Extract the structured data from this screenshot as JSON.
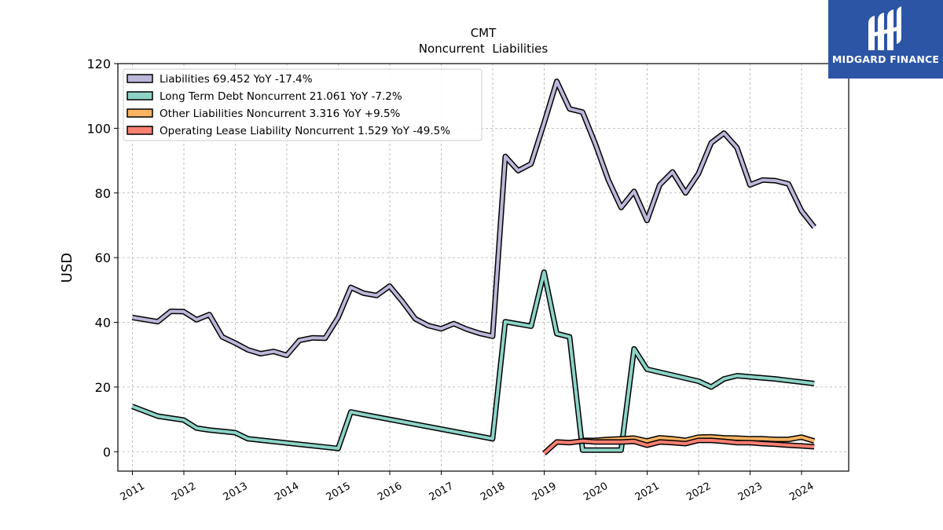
{
  "chart_data": {
    "type": "line",
    "title": "CMT",
    "subtitle": "Noncurrent  Liabilities",
    "ylabel": "USD",
    "ylim": [
      -6,
      120
    ],
    "yticks": [
      0,
      20,
      40,
      60,
      80,
      100,
      120
    ],
    "xlim": [
      "2010-09-20",
      "2024-12-01"
    ],
    "xticks": [
      "2011",
      "2012",
      "2013",
      "2014",
      "2015",
      "2016",
      "2017",
      "2018",
      "2019",
      "2020",
      "2021",
      "2022",
      "2023",
      "2024"
    ],
    "grid": true,
    "legend_position": "top-left",
    "series": [
      {
        "name": "Liabilities",
        "legend": "Liabilities  69.452 YoY -17.4%",
        "color": "#bcb8da",
        "points": [
          [
            "2010-12-31",
            41.5
          ],
          [
            "2011-06-30",
            40.2
          ],
          [
            "2011-09-30",
            43.4
          ],
          [
            "2011-12-31",
            43.3
          ],
          [
            "2012-03-31",
            40.8
          ],
          [
            "2012-06-30",
            42.4
          ],
          [
            "2012-09-30",
            35.5
          ],
          [
            "2012-12-31",
            33.6
          ],
          [
            "2013-03-31",
            31.5
          ],
          [
            "2013-06-30",
            30.3
          ],
          [
            "2013-09-30",
            31.0
          ],
          [
            "2013-12-31",
            29.8
          ],
          [
            "2014-03-31",
            34.4
          ],
          [
            "2014-06-30",
            35.2
          ],
          [
            "2014-09-30",
            35.1
          ],
          [
            "2014-12-31",
            41.5
          ],
          [
            "2015-03-31",
            50.8
          ],
          [
            "2015-06-30",
            49.0
          ],
          [
            "2015-09-30",
            48.3
          ],
          [
            "2015-12-31",
            51.2
          ],
          [
            "2016-03-31",
            46.4
          ],
          [
            "2016-06-30",
            41.1
          ],
          [
            "2016-09-30",
            39.0
          ],
          [
            "2016-12-31",
            38.0
          ],
          [
            "2017-03-31",
            39.6
          ],
          [
            "2017-06-30",
            37.9
          ],
          [
            "2017-09-30",
            36.6
          ],
          [
            "2017-12-31",
            35.7
          ],
          [
            "2018-03-31",
            91.3
          ],
          [
            "2018-06-30",
            86.9
          ],
          [
            "2018-09-30",
            89.0
          ],
          [
            "2018-12-31",
            101.6
          ],
          [
            "2019-03-31",
            114.5
          ],
          [
            "2019-06-30",
            106.0
          ],
          [
            "2019-09-30",
            105.0
          ],
          [
            "2019-12-31",
            95.0
          ],
          [
            "2020-03-31",
            84.0
          ],
          [
            "2020-06-30",
            75.5
          ],
          [
            "2020-09-30",
            80.5
          ],
          [
            "2020-12-31",
            71.5
          ],
          [
            "2021-03-31",
            82.5
          ],
          [
            "2021-06-30",
            86.5
          ],
          [
            "2021-09-30",
            80.0
          ],
          [
            "2021-12-31",
            86.0
          ],
          [
            "2022-03-31",
            95.5
          ],
          [
            "2022-06-30",
            98.5
          ],
          [
            "2022-09-30",
            94.0
          ],
          [
            "2022-12-31",
            82.5
          ],
          [
            "2023-03-31",
            84.0
          ],
          [
            "2023-06-30",
            83.8
          ],
          [
            "2023-09-30",
            82.8
          ],
          [
            "2023-12-31",
            74.5
          ],
          [
            "2024-03-31",
            69.452
          ]
        ]
      },
      {
        "name": "Long Term Debt Noncurrent",
        "legend": "Long Term Debt Noncurrent  21.061 YoY -7.2%",
        "color": "#8dd3c7",
        "points": [
          [
            "2010-12-31",
            14.0
          ],
          [
            "2011-06-30",
            11.0
          ],
          [
            "2011-12-31",
            9.8
          ],
          [
            "2012-03-31",
            7.3
          ],
          [
            "2012-06-30",
            6.7
          ],
          [
            "2012-12-31",
            5.9
          ],
          [
            "2013-03-31",
            4.0
          ],
          [
            "2014-12-31",
            1.0
          ],
          [
            "2015-03-31",
            12.3
          ],
          [
            "2015-06-30",
            11.5
          ],
          [
            "2017-12-31",
            4.0
          ],
          [
            "2018-03-31",
            40.2
          ],
          [
            "2018-09-30",
            38.8
          ],
          [
            "2018-12-31",
            55.5
          ],
          [
            "2019-03-31",
            36.5
          ],
          [
            "2019-06-30",
            35.5
          ],
          [
            "2019-09-30",
            0.5
          ],
          [
            "2020-06-30",
            0.5
          ],
          [
            "2020-09-30",
            31.8
          ],
          [
            "2020-12-31",
            25.5
          ],
          [
            "2021-12-31",
            21.8
          ],
          [
            "2022-03-31",
            20.0
          ],
          [
            "2022-06-30",
            22.5
          ],
          [
            "2022-09-30",
            23.5
          ],
          [
            "2023-06-30",
            22.5
          ],
          [
            "2023-09-30",
            22.0
          ],
          [
            "2024-03-31",
            21.061
          ]
        ]
      },
      {
        "name": "Other Liabilities Noncurrent",
        "legend": "Other Liabilities Noncurrent  3.316 YoY +9.5%",
        "color": "#fdb462",
        "points": [
          [
            "2019-09-30",
            3.5
          ],
          [
            "2019-12-31",
            3.5
          ],
          [
            "2020-03-31",
            3.8
          ],
          [
            "2020-06-30",
            4.0
          ],
          [
            "2020-09-30",
            4.2
          ],
          [
            "2020-12-31",
            3.3
          ],
          [
            "2021-03-31",
            4.3
          ],
          [
            "2021-06-30",
            4.0
          ],
          [
            "2021-09-30",
            3.5
          ],
          [
            "2021-12-31",
            4.5
          ],
          [
            "2022-03-31",
            4.6
          ],
          [
            "2022-06-30",
            4.3
          ],
          [
            "2022-09-30",
            4.2
          ],
          [
            "2022-12-31",
            4.0
          ],
          [
            "2023-03-31",
            4.0
          ],
          [
            "2023-06-30",
            3.8
          ],
          [
            "2023-09-30",
            3.8
          ],
          [
            "2023-12-31",
            4.5
          ],
          [
            "2024-03-31",
            3.316
          ]
        ]
      },
      {
        "name": "Operating Lease Liability Noncurrent",
        "legend": "Operating Lease Liability Noncurrent  1.529 YoY -49.5%",
        "color": "#fb8072",
        "points": [
          [
            "2018-12-31",
            -0.5
          ],
          [
            "2019-03-31",
            3.0
          ],
          [
            "2019-06-30",
            2.8
          ],
          [
            "2019-09-30",
            3.3
          ],
          [
            "2019-12-31",
            3.0
          ],
          [
            "2020-03-31",
            3.0
          ],
          [
            "2020-06-30",
            3.0
          ],
          [
            "2020-09-30",
            3.2
          ],
          [
            "2020-12-31",
            2.0
          ],
          [
            "2021-03-31",
            3.0
          ],
          [
            "2021-06-30",
            2.8
          ],
          [
            "2021-09-30",
            2.5
          ],
          [
            "2021-12-31",
            3.5
          ],
          [
            "2022-03-31",
            3.5
          ],
          [
            "2022-06-30",
            3.2
          ],
          [
            "2022-09-30",
            2.8
          ],
          [
            "2022-12-31",
            2.8
          ],
          [
            "2023-03-31",
            2.5
          ],
          [
            "2023-06-30",
            2.3
          ],
          [
            "2023-09-30",
            2.0
          ],
          [
            "2023-12-31",
            1.8
          ],
          [
            "2024-03-31",
            1.529
          ]
        ]
      }
    ]
  },
  "logo": {
    "text": "MIDGARD FINANCE",
    "background": "#2c55a5"
  }
}
